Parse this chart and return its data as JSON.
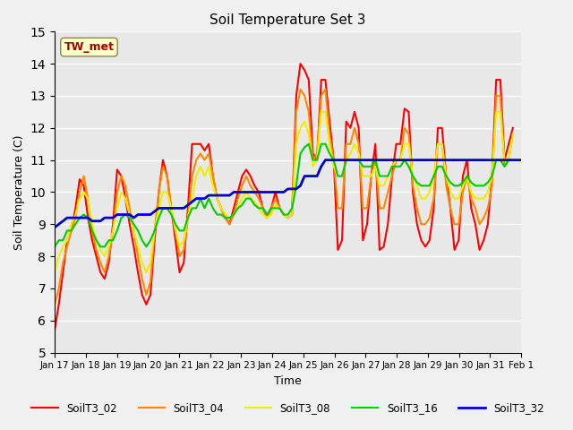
{
  "title": "Soil Temperature Set 3",
  "xlabel": "Time",
  "ylabel": "Soil Temperature (C)",
  "ylim": [
    5.0,
    15.0
  ],
  "yticks": [
    5.0,
    6.0,
    7.0,
    8.0,
    9.0,
    10.0,
    11.0,
    12.0,
    13.0,
    14.0,
    15.0
  ],
  "bg_color": "#e8e8e8",
  "grid_color": "#ffffff",
  "annotation_text": "TW_met",
  "annotation_box_color": "#ffffcc",
  "annotation_box_edge": "#888844",
  "annotation_text_color": "#aa0000",
  "series_colors": {
    "SoilT3_02": "#ff0000",
    "SoilT3_04": "#ff8800",
    "SoilT3_08": "#eeee00",
    "SoilT3_16": "#00cc00",
    "SoilT3_32": "#0000cc"
  },
  "tick_labels": [
    "Jan 17",
    "Jan 18",
    "Jan 19",
    "Jan 20",
    "Jan 21",
    "Jan 22",
    "Jan 23",
    "Jan 24",
    "Jan 25",
    "Jan 26",
    "Jan 27",
    "Jan 28",
    "Jan 29",
    "Jan 30",
    "Jan 31",
    "Feb 1"
  ],
  "n_ticks": 16,
  "series_data": {
    "SoilT3_02": [
      5.7,
      6.5,
      7.5,
      8.5,
      8.8,
      9.5,
      10.4,
      10.2,
      9.2,
      8.5,
      8.0,
      7.5,
      7.3,
      7.8,
      9.0,
      10.7,
      10.5,
      9.8,
      9.0,
      8.3,
      7.5,
      6.8,
      6.5,
      6.8,
      8.5,
      10.0,
      11.0,
      10.5,
      9.5,
      8.5,
      7.5,
      7.8,
      9.5,
      11.5,
      11.5,
      11.5,
      11.3,
      11.5,
      10.5,
      9.8,
      9.5,
      9.2,
      9.0,
      9.5,
      10.0,
      10.5,
      10.7,
      10.5,
      10.2,
      10.0,
      9.5,
      9.2,
      9.5,
      10.0,
      9.5,
      9.3,
      9.2,
      9.3,
      13.0,
      14.0,
      13.8,
      13.5,
      11.2,
      11.0,
      13.5,
      13.5,
      12.2,
      11.0,
      8.2,
      8.5,
      12.2,
      12.0,
      12.5,
      12.0,
      8.5,
      9.0,
      10.5,
      11.5,
      8.2,
      8.3,
      9.0,
      10.5,
      11.5,
      11.5,
      12.6,
      12.5,
      10.0,
      9.0,
      8.5,
      8.3,
      8.5,
      9.5,
      12.0,
      12.0,
      10.5,
      9.5,
      8.2,
      8.5,
      10.5,
      11.0,
      9.5,
      9.0,
      8.2,
      8.5,
      9.0,
      10.5,
      13.5,
      13.5,
      11.0,
      11.5,
      12.0
    ],
    "SoilT3_04": [
      6.5,
      7.0,
      7.8,
      8.3,
      8.8,
      9.2,
      10.0,
      10.5,
      9.8,
      8.8,
      8.2,
      7.8,
      7.5,
      8.0,
      8.8,
      10.0,
      10.5,
      10.2,
      9.5,
      8.8,
      8.0,
      7.3,
      6.8,
      7.2,
      8.8,
      10.0,
      10.8,
      10.5,
      9.5,
      8.8,
      8.0,
      8.2,
      9.2,
      10.5,
      11.0,
      11.2,
      11.0,
      11.2,
      10.5,
      9.8,
      9.5,
      9.2,
      9.0,
      9.3,
      9.8,
      10.2,
      10.5,
      10.2,
      10.0,
      9.8,
      9.5,
      9.2,
      9.5,
      9.8,
      9.5,
      9.3,
      9.2,
      9.3,
      12.5,
      13.2,
      13.0,
      12.5,
      11.0,
      11.2,
      13.0,
      13.2,
      11.8,
      11.0,
      9.5,
      9.5,
      11.5,
      11.5,
      12.0,
      11.5,
      9.5,
      9.5,
      10.5,
      11.0,
      9.5,
      9.5,
      10.0,
      10.5,
      11.0,
      11.0,
      12.0,
      11.8,
      10.2,
      9.5,
      9.0,
      9.0,
      9.2,
      9.8,
      11.5,
      11.5,
      10.2,
      9.5,
      9.0,
      9.0,
      10.0,
      10.5,
      9.8,
      9.5,
      9.0,
      9.2,
      9.5,
      10.2,
      13.0,
      13.0,
      10.8,
      11.0,
      11.8
    ],
    "SoilT3_08": [
      7.5,
      8.0,
      8.3,
      8.5,
      9.0,
      9.3,
      9.8,
      10.0,
      9.8,
      9.0,
      8.5,
      8.2,
      8.0,
      8.3,
      8.8,
      9.5,
      10.0,
      9.8,
      9.3,
      8.8,
      8.3,
      7.8,
      7.5,
      7.8,
      8.8,
      9.5,
      10.0,
      10.0,
      9.5,
      8.8,
      8.3,
      8.5,
      9.2,
      9.8,
      10.5,
      10.8,
      10.5,
      10.8,
      10.2,
      9.8,
      9.5,
      9.3,
      9.2,
      9.3,
      9.5,
      9.8,
      10.0,
      9.8,
      9.7,
      9.5,
      9.3,
      9.2,
      9.3,
      9.6,
      9.5,
      9.3,
      9.2,
      9.3,
      11.5,
      12.0,
      12.2,
      11.8,
      10.8,
      11.0,
      12.5,
      12.5,
      11.5,
      10.8,
      10.5,
      10.5,
      11.0,
      11.2,
      11.5,
      11.2,
      10.5,
      10.5,
      10.5,
      10.8,
      10.2,
      10.2,
      10.5,
      10.8,
      11.0,
      11.0,
      11.5,
      11.5,
      10.5,
      10.2,
      9.8,
      9.8,
      10.0,
      10.5,
      11.5,
      11.5,
      10.5,
      10.0,
      9.8,
      9.8,
      10.2,
      10.5,
      10.0,
      9.8,
      9.8,
      9.8,
      10.0,
      10.5,
      12.5,
      12.5,
      11.0,
      11.0,
      11.8
    ],
    "SoilT3_16": [
      8.3,
      8.5,
      8.5,
      8.8,
      8.8,
      9.0,
      9.2,
      9.3,
      9.2,
      8.8,
      8.5,
      8.3,
      8.3,
      8.5,
      8.5,
      8.8,
      9.2,
      9.3,
      9.2,
      9.0,
      8.8,
      8.5,
      8.3,
      8.5,
      8.8,
      9.2,
      9.5,
      9.5,
      9.3,
      9.0,
      8.8,
      8.8,
      9.2,
      9.5,
      9.5,
      9.8,
      9.5,
      9.8,
      9.5,
      9.3,
      9.3,
      9.2,
      9.2,
      9.3,
      9.5,
      9.6,
      9.8,
      9.8,
      9.6,
      9.5,
      9.5,
      9.3,
      9.5,
      9.5,
      9.5,
      9.3,
      9.3,
      9.5,
      10.2,
      11.2,
      11.4,
      11.5,
      11.0,
      11.0,
      11.5,
      11.5,
      11.2,
      11.0,
      10.5,
      10.5,
      11.0,
      11.0,
      11.0,
      11.0,
      10.8,
      10.8,
      10.8,
      11.0,
      10.5,
      10.5,
      10.5,
      10.8,
      10.8,
      10.8,
      11.0,
      10.8,
      10.5,
      10.3,
      10.2,
      10.2,
      10.2,
      10.5,
      10.8,
      10.8,
      10.5,
      10.3,
      10.2,
      10.2,
      10.3,
      10.5,
      10.3,
      10.2,
      10.2,
      10.2,
      10.3,
      10.5,
      11.0,
      11.0,
      10.8,
      11.0,
      11.0
    ],
    "SoilT3_32": [
      8.9,
      9.0,
      9.1,
      9.2,
      9.2,
      9.2,
      9.2,
      9.2,
      9.2,
      9.1,
      9.1,
      9.1,
      9.2,
      9.2,
      9.2,
      9.3,
      9.3,
      9.3,
      9.3,
      9.2,
      9.3,
      9.3,
      9.3,
      9.3,
      9.4,
      9.5,
      9.5,
      9.5,
      9.5,
      9.5,
      9.5,
      9.5,
      9.6,
      9.7,
      9.8,
      9.8,
      9.8,
      9.9,
      9.9,
      9.9,
      9.9,
      9.9,
      9.9,
      10.0,
      10.0,
      10.0,
      10.0,
      10.0,
      10.0,
      10.0,
      10.0,
      10.0,
      10.0,
      10.0,
      10.0,
      10.0,
      10.1,
      10.1,
      10.1,
      10.2,
      10.5,
      10.5,
      10.5,
      10.5,
      10.8,
      11.0,
      11.0,
      11.0,
      11.0,
      11.0,
      11.0,
      11.0,
      11.0,
      11.0,
      11.0,
      11.0,
      11.0,
      11.0,
      11.0,
      11.0,
      11.0,
      11.0,
      11.0,
      11.0,
      11.0,
      11.0,
      11.0,
      11.0,
      11.0,
      11.0,
      11.0,
      11.0,
      11.0,
      11.0,
      11.0,
      11.0,
      11.0,
      11.0,
      11.0,
      11.0,
      11.0,
      11.0,
      11.0,
      11.0,
      11.0,
      11.0,
      11.0,
      11.0,
      11.0,
      11.0,
      11.0,
      11.0,
      11.0
    ]
  }
}
